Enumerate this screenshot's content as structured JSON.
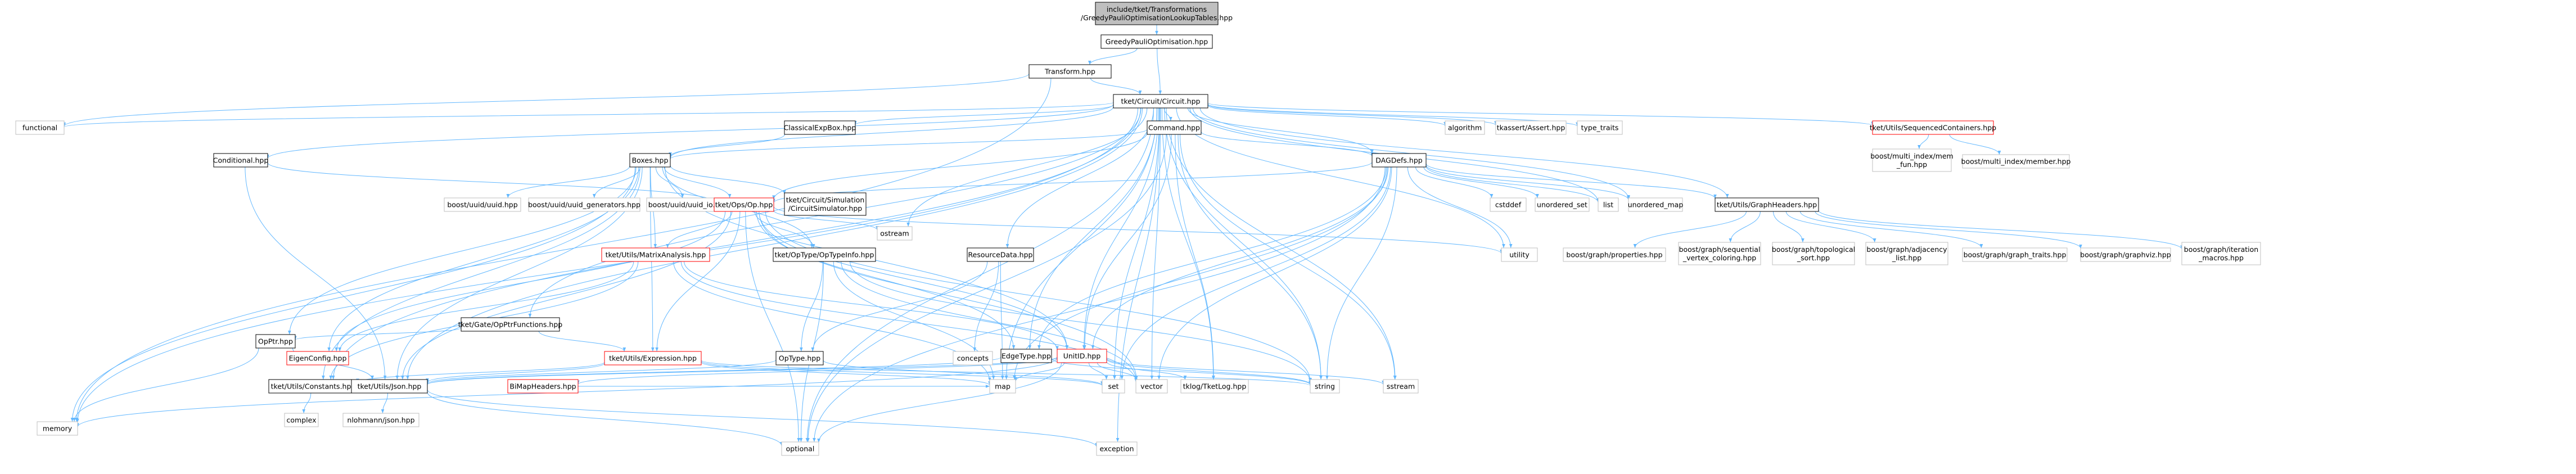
{
  "colors": {
    "root_fill": "#bfbfbf",
    "box_fill": "#ffffff",
    "box_stroke": "#000000",
    "ext_stroke": "#bfbfbf",
    "red_stroke": "#ff0000",
    "edge": "#63b8ff",
    "text": "#000000"
  },
  "nodes": [
    {
      "id": "root",
      "lines": [
        "include/tket/Transformations",
        "/GreedyPauliOptimisationLookupTables.hpp"
      ],
      "kind": "root"
    },
    {
      "id": "gpo",
      "lines": [
        "GreedyPauliOptimisation.hpp"
      ],
      "kind": "box"
    },
    {
      "id": "transform",
      "lines": [
        "Transform.hpp"
      ],
      "kind": "box"
    },
    {
      "id": "circuit",
      "lines": [
        "tket/Circuit/Circuit.hpp"
      ],
      "kind": "box"
    },
    {
      "id": "functional",
      "lines": [
        "functional"
      ],
      "kind": "ext"
    },
    {
      "id": "memory",
      "lines": [
        "memory"
      ],
      "kind": "ext"
    },
    {
      "id": "conditional",
      "lines": [
        "Conditional.hpp"
      ],
      "kind": "box"
    },
    {
      "id": "gateopptr",
      "lines": [
        "tket/Gate/OpPtrFunctions.hpp"
      ],
      "kind": "box"
    },
    {
      "id": "boxes",
      "lines": [
        "Boxes.hpp"
      ],
      "kind": "box"
    },
    {
      "id": "classicalexpbox",
      "lines": [
        "ClassicalExpBox.hpp"
      ],
      "kind": "box"
    },
    {
      "id": "command",
      "lines": [
        "Command.hpp"
      ],
      "kind": "box"
    },
    {
      "id": "dagdefs",
      "lines": [
        "DAGDefs.hpp"
      ],
      "kind": "box"
    },
    {
      "id": "algorithm",
      "lines": [
        "algorithm"
      ],
      "kind": "ext"
    },
    {
      "id": "tkassert",
      "lines": [
        "tkassert/Assert.hpp"
      ],
      "kind": "ext"
    },
    {
      "id": "typetraits",
      "lines": [
        "type_traits"
      ],
      "kind": "ext"
    },
    {
      "id": "seqcont",
      "lines": [
        "tket/Utils/SequencedContainers.hpp"
      ],
      "kind": "red"
    },
    {
      "id": "multiindexmemfun",
      "lines": [
        "boost/multi_index/mem",
        "_fun.hpp"
      ],
      "kind": "ext"
    },
    {
      "id": "multiindexmember",
      "lines": [
        "boost/multi_index/member.hpp"
      ],
      "kind": "ext"
    },
    {
      "id": "uuid",
      "lines": [
        "boost/uuid/uuid.hpp"
      ],
      "kind": "ext"
    },
    {
      "id": "uuidgen",
      "lines": [
        "boost/uuid/uuid_generators.hpp"
      ],
      "kind": "ext"
    },
    {
      "id": "uuidio",
      "lines": [
        "boost/uuid/uuid_io.hpp"
      ],
      "kind": "ext"
    },
    {
      "id": "opsop",
      "lines": [
        "tket/Ops/Op.hpp"
      ],
      "kind": "red"
    },
    {
      "id": "circsim",
      "lines": [
        "tket/Circuit/Simulation",
        "/CircuitSimulator.hpp"
      ],
      "kind": "box"
    },
    {
      "id": "cstddef",
      "lines": [
        "cstddef"
      ],
      "kind": "ext"
    },
    {
      "id": "unorderedset",
      "lines": [
        "unordered_set"
      ],
      "kind": "ext"
    },
    {
      "id": "list",
      "lines": [
        "list"
      ],
      "kind": "ext"
    },
    {
      "id": "unorderedmap",
      "lines": [
        "unordered_map"
      ],
      "kind": "ext"
    },
    {
      "id": "graphheaders",
      "lines": [
        "tket/Utils/GraphHeaders.hpp"
      ],
      "kind": "box"
    },
    {
      "id": "utility",
      "lines": [
        "utility"
      ],
      "kind": "ext"
    },
    {
      "id": "graphprops",
      "lines": [
        "boost/graph/properties.hpp"
      ],
      "kind": "ext"
    },
    {
      "id": "graphseq",
      "lines": [
        "boost/graph/sequential",
        "_vertex_coloring.hpp"
      ],
      "kind": "ext"
    },
    {
      "id": "graphtopo",
      "lines": [
        "boost/graph/topological",
        "_sort.hpp"
      ],
      "kind": "ext"
    },
    {
      "id": "graphadj",
      "lines": [
        "boost/graph/adjacency",
        "_list.hpp"
      ],
      "kind": "ext"
    },
    {
      "id": "graphtraits",
      "lines": [
        "boost/graph/graph_traits.hpp"
      ],
      "kind": "ext"
    },
    {
      "id": "graphviz",
      "lines": [
        "boost/graph/graphviz.hpp"
      ],
      "kind": "ext"
    },
    {
      "id": "graphiter",
      "lines": [
        "boost/graph/iteration",
        "_macros.hpp"
      ],
      "kind": "ext"
    },
    {
      "id": "matrixanalysis",
      "lines": [
        "tket/Utils/MatrixAnalysis.hpp"
      ],
      "kind": "red"
    },
    {
      "id": "optypeinfo",
      "lines": [
        "tket/OpType/OpTypeInfo.hpp"
      ],
      "kind": "box"
    },
    {
      "id": "ostream",
      "lines": [
        "ostream"
      ],
      "kind": "ext"
    },
    {
      "id": "resourcedata",
      "lines": [
        "ResourceData.hpp"
      ],
      "kind": "box"
    },
    {
      "id": "opptr",
      "lines": [
        "OpPtr.hpp"
      ],
      "kind": "box"
    },
    {
      "id": "eigenconfig",
      "lines": [
        "EigenConfig.hpp"
      ],
      "kind": "red"
    },
    {
      "id": "expression",
      "lines": [
        "tket/Utils/Expression.hpp"
      ],
      "kind": "red"
    },
    {
      "id": "optype",
      "lines": [
        "OpType.hpp"
      ],
      "kind": "box"
    },
    {
      "id": "concepts",
      "lines": [
        "concepts"
      ],
      "kind": "ext"
    },
    {
      "id": "edgetype",
      "lines": [
        "EdgeType.hpp"
      ],
      "kind": "box"
    },
    {
      "id": "unitid",
      "lines": [
        "UnitID.hpp"
      ],
      "kind": "red"
    },
    {
      "id": "constants",
      "lines": [
        "tket/Utils/Constants.hpp"
      ],
      "kind": "box"
    },
    {
      "id": "json",
      "lines": [
        "tket/Utils/Json.hpp"
      ],
      "kind": "box"
    },
    {
      "id": "bimap",
      "lines": [
        "BiMapHeaders.hpp"
      ],
      "kind": "red"
    },
    {
      "id": "map",
      "lines": [
        "map"
      ],
      "kind": "ext"
    },
    {
      "id": "set",
      "lines": [
        "set"
      ],
      "kind": "ext"
    },
    {
      "id": "vector",
      "lines": [
        "vector"
      ],
      "kind": "ext"
    },
    {
      "id": "tklog",
      "lines": [
        "tklog/TketLog.hpp"
      ],
      "kind": "ext"
    },
    {
      "id": "string",
      "lines": [
        "string"
      ],
      "kind": "ext"
    },
    {
      "id": "sstream",
      "lines": [
        "sstream"
      ],
      "kind": "ext"
    },
    {
      "id": "complex",
      "lines": [
        "complex"
      ],
      "kind": "ext"
    },
    {
      "id": "nlohmann",
      "lines": [
        "nlohmann/json.hpp"
      ],
      "kind": "ext"
    },
    {
      "id": "optional",
      "lines": [
        "optional"
      ],
      "kind": "ext"
    },
    {
      "id": "exception",
      "lines": [
        "exception"
      ],
      "kind": "ext"
    }
  ],
  "edges": [
    [
      "root",
      "gpo"
    ],
    [
      "gpo",
      "transform"
    ],
    [
      "gpo",
      "circuit"
    ],
    [
      "transform",
      "circuit"
    ],
    [
      "transform",
      "functional"
    ],
    [
      "transform",
      "memory"
    ],
    [
      "circuit",
      "functional"
    ],
    [
      "circuit",
      "memory"
    ],
    [
      "circuit",
      "conditional"
    ],
    [
      "circuit",
      "gateopptr"
    ],
    [
      "circuit",
      "boxes"
    ],
    [
      "circuit",
      "classicalexpbox"
    ],
    [
      "circuit",
      "command"
    ],
    [
      "circuit",
      "dagdefs"
    ],
    [
      "circuit",
      "algorithm"
    ],
    [
      "circuit",
      "tkassert"
    ],
    [
      "circuit",
      "typetraits"
    ],
    [
      "circuit",
      "seqcont"
    ],
    [
      "circuit",
      "graphheaders"
    ],
    [
      "circuit",
      "list"
    ],
    [
      "circuit",
      "unorderedmap"
    ],
    [
      "circuit",
      "utility"
    ],
    [
      "circuit",
      "ostream"
    ],
    [
      "circuit",
      "resourcedata"
    ],
    [
      "circuit",
      "map"
    ],
    [
      "circuit",
      "set"
    ],
    [
      "circuit",
      "vector"
    ],
    [
      "circuit",
      "tklog"
    ],
    [
      "circuit",
      "string"
    ],
    [
      "circuit",
      "sstream"
    ],
    [
      "circuit",
      "optional"
    ],
    [
      "circuit",
      "exception"
    ],
    [
      "circuit",
      "constants"
    ],
    [
      "circuit",
      "json"
    ],
    [
      "circuit",
      "unitid"
    ],
    [
      "circuit",
      "edgetype"
    ],
    [
      "seqcont",
      "multiindexmemfun"
    ],
    [
      "seqcont",
      "multiindexmember"
    ],
    [
      "conditional",
      "opsop"
    ],
    [
      "conditional",
      "json"
    ],
    [
      "gateopptr",
      "opptr"
    ],
    [
      "gateopptr",
      "expression"
    ],
    [
      "classicalexpbox",
      "boxes"
    ],
    [
      "boxes",
      "uuid"
    ],
    [
      "boxes",
      "uuidgen"
    ],
    [
      "boxes",
      "uuidio"
    ],
    [
      "boxes",
      "opsop"
    ],
    [
      "boxes",
      "circsim"
    ],
    [
      "boxes",
      "memory"
    ],
    [
      "boxes",
      "opptr"
    ],
    [
      "boxes",
      "eigenconfig"
    ],
    [
      "boxes",
      "expression"
    ],
    [
      "boxes",
      "optypeinfo"
    ],
    [
      "boxes",
      "json"
    ],
    [
      "boxes",
      "constants"
    ],
    [
      "boxes",
      "unitid"
    ],
    [
      "boxes",
      "matrixanalysis"
    ],
    [
      "command",
      "boxes"
    ],
    [
      "command",
      "dagdefs"
    ],
    [
      "command",
      "unitid"
    ],
    [
      "command",
      "string"
    ],
    [
      "command",
      "optional"
    ],
    [
      "command",
      "tklog"
    ],
    [
      "command",
      "sstream"
    ],
    [
      "command",
      "opsop"
    ],
    [
      "dagdefs",
      "opsop"
    ],
    [
      "dagdefs",
      "cstddef"
    ],
    [
      "dagdefs",
      "unorderedset"
    ],
    [
      "dagdefs",
      "list"
    ],
    [
      "dagdefs",
      "unorderedmap"
    ],
    [
      "dagdefs",
      "graphheaders"
    ],
    [
      "dagdefs",
      "utility"
    ],
    [
      "dagdefs",
      "edgetype"
    ],
    [
      "dagdefs",
      "unitid"
    ],
    [
      "dagdefs",
      "map"
    ],
    [
      "dagdefs",
      "set"
    ],
    [
      "dagdefs",
      "vector"
    ],
    [
      "dagdefs",
      "string"
    ],
    [
      "dagdefs",
      "optional"
    ],
    [
      "graphheaders",
      "graphprops"
    ],
    [
      "graphheaders",
      "graphseq"
    ],
    [
      "graphheaders",
      "graphtopo"
    ],
    [
      "graphheaders",
      "graphadj"
    ],
    [
      "graphheaders",
      "graphtraits"
    ],
    [
      "graphheaders",
      "graphviz"
    ],
    [
      "graphheaders",
      "graphiter"
    ],
    [
      "opsop",
      "matrixanalysis"
    ],
    [
      "opsop",
      "optypeinfo"
    ],
    [
      "opsop",
      "ostream"
    ],
    [
      "opsop",
      "utility"
    ],
    [
      "opsop",
      "expression"
    ],
    [
      "opsop",
      "eigenconfig"
    ],
    [
      "opsop",
      "json"
    ],
    [
      "opsop",
      "unitid"
    ],
    [
      "opsop",
      "string"
    ],
    [
      "opsop",
      "vector"
    ],
    [
      "opsop",
      "optional"
    ],
    [
      "opsop",
      "edgetype"
    ],
    [
      "matrixanalysis",
      "eigenconfig"
    ],
    [
      "matrixanalysis",
      "constants"
    ],
    [
      "matrixanalysis",
      "unitid"
    ],
    [
      "matrixanalysis",
      "vector"
    ],
    [
      "matrixanalysis",
      "map"
    ],
    [
      "optypeinfo",
      "optype"
    ],
    [
      "optypeinfo",
      "map"
    ],
    [
      "optypeinfo",
      "optional"
    ],
    [
      "optypeinfo",
      "string"
    ],
    [
      "optypeinfo",
      "vector"
    ],
    [
      "resourcedata",
      "optype"
    ],
    [
      "resourcedata",
      "concepts"
    ],
    [
      "resourcedata",
      "map"
    ],
    [
      "opptr",
      "memory"
    ],
    [
      "opptr",
      "json"
    ],
    [
      "expression",
      "constants"
    ],
    [
      "expression",
      "json"
    ],
    [
      "expression",
      "set"
    ],
    [
      "expression",
      "map"
    ],
    [
      "expression",
      "string"
    ],
    [
      "optype",
      "json"
    ],
    [
      "optype",
      "set"
    ],
    [
      "edgetype",
      "json"
    ],
    [
      "edgetype",
      "string"
    ],
    [
      "unitid",
      "bimap"
    ],
    [
      "unitid",
      "json"
    ],
    [
      "unitid",
      "memory"
    ],
    [
      "unitid",
      "string"
    ],
    [
      "unitid",
      "map"
    ],
    [
      "unitid",
      "set"
    ],
    [
      "unitid",
      "vector"
    ],
    [
      "unitid",
      "sstream"
    ],
    [
      "unitid",
      "optional"
    ],
    [
      "unitid",
      "tklog"
    ],
    [
      "constants",
      "complex"
    ],
    [
      "json",
      "nlohmann"
    ],
    [
      "json",
      "optional"
    ],
    [
      "json",
      "exception"
    ],
    [
      "bimap",
      "map"
    ]
  ]
}
